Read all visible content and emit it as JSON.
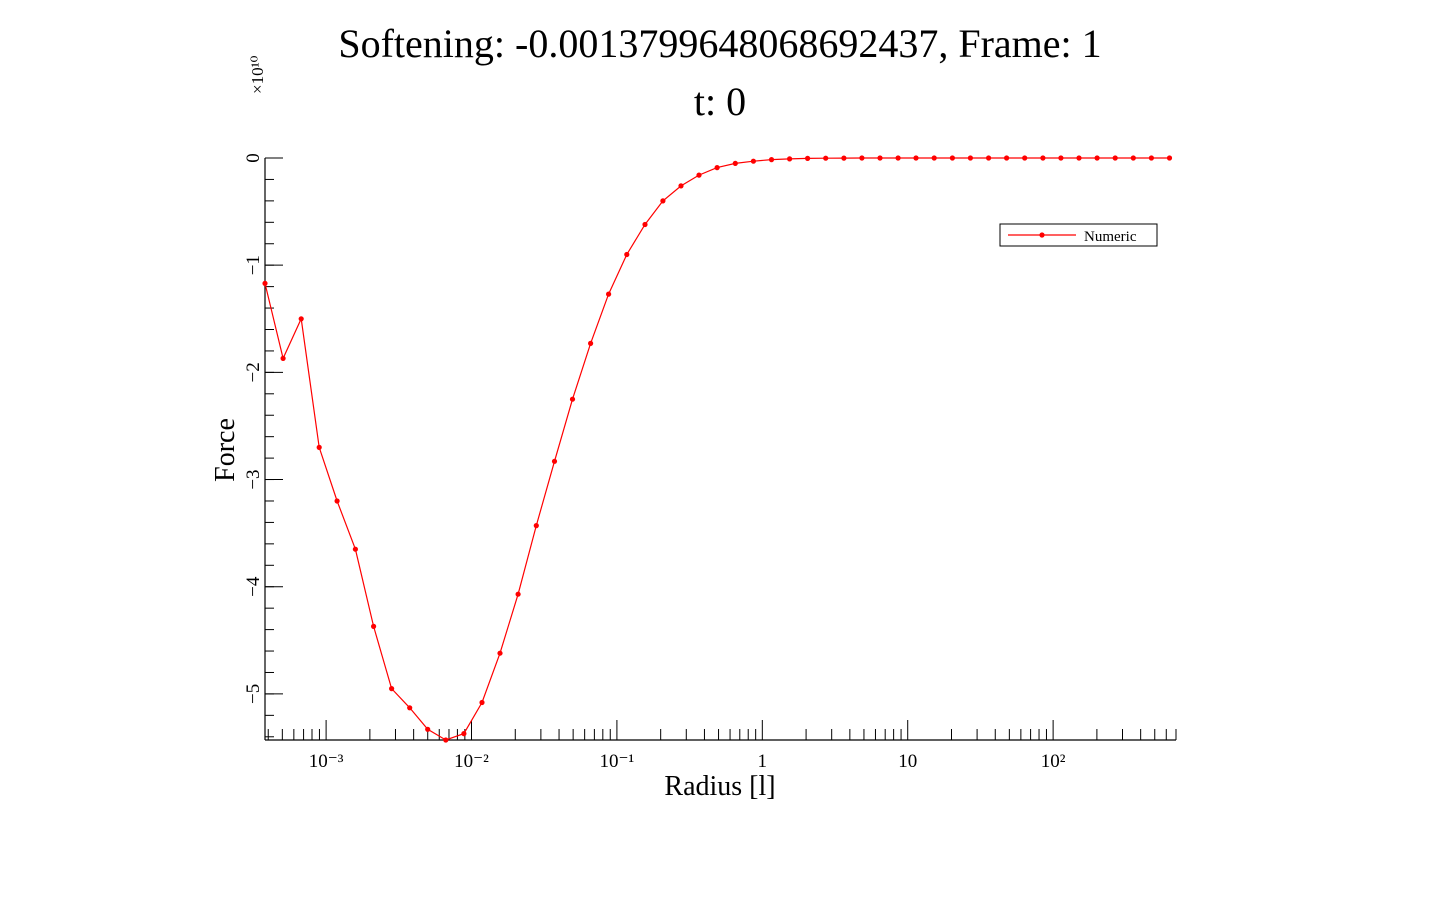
{
  "title_line1": "Softening: -0.0013799648068692437, Frame: 1",
  "title_line2": "t: 0",
  "y_scale_label": "×10¹⁰",
  "colors": {
    "series": "#ff0000",
    "axis": "#000000"
  },
  "chart_data": {
    "type": "line",
    "title": "Softening: -0.0013799648068692437, Frame: 1  t: 0",
    "xlabel": "Radius [l]",
    "ylabel": "Force",
    "xscale": "log",
    "xlim": [
      0.00038,
      700
    ],
    "ylim": [
      -5.43,
      0
    ],
    "y_multiplier": "×10¹⁰",
    "x_ticks": [
      {
        "value": 0.001,
        "label": "10⁻³"
      },
      {
        "value": 0.01,
        "label": "10⁻²"
      },
      {
        "value": 0.1,
        "label": "10⁻¹"
      },
      {
        "value": 1,
        "label": "1"
      },
      {
        "value": 10,
        "label": "10"
      },
      {
        "value": 100,
        "label": "10²"
      }
    ],
    "y_ticks": [
      {
        "value": 0,
        "label": "0"
      },
      {
        "value": -1,
        "label": "−1"
      },
      {
        "value": -2,
        "label": "−2"
      },
      {
        "value": -3,
        "label": "−3"
      },
      {
        "value": -4,
        "label": "−4"
      },
      {
        "value": -5,
        "label": "−5"
      }
    ],
    "legend": {
      "position": "top-right",
      "entries": [
        "Numeric"
      ]
    },
    "grid": false,
    "series": [
      {
        "name": "Numeric",
        "marker": "dot",
        "x": [
          0.00038,
          0.000506,
          0.000674,
          0.000897,
          0.00119,
          0.00159,
          0.00212,
          0.00282,
          0.00376,
          0.005,
          0.00666,
          0.00887,
          0.0118,
          0.0157,
          0.0209,
          0.0279,
          0.0372,
          0.0495,
          0.0659,
          0.0877,
          0.117,
          0.156,
          0.207,
          0.276,
          0.367,
          0.489,
          0.652,
          0.868,
          1.156,
          1.54,
          2.05,
          2.73,
          3.64,
          4.84,
          6.45,
          8.59,
          11.4,
          15.2,
          20.3,
          27.0,
          36.0,
          47.9,
          63.8,
          85.0,
          113.2,
          150.7,
          200.7,
          267.3,
          356.0,
          474.1,
          631.4
        ],
        "values": [
          -1.17,
          -1.87,
          -1.5,
          -2.7,
          -3.2,
          -3.65,
          -4.37,
          -4.95,
          -5.13,
          -5.33,
          -5.43,
          -5.37,
          -5.08,
          -4.62,
          -4.07,
          -3.43,
          -2.83,
          -2.25,
          -1.73,
          -1.27,
          -0.9,
          -0.62,
          -0.4,
          -0.26,
          -0.16,
          -0.09,
          -0.05,
          -0.03,
          -0.015,
          -0.008,
          -0.004,
          -0.002,
          -0.001,
          0,
          0,
          0,
          0,
          0,
          0,
          0,
          0,
          0,
          0,
          0,
          0,
          0,
          0,
          0,
          0,
          0,
          0
        ]
      }
    ]
  }
}
